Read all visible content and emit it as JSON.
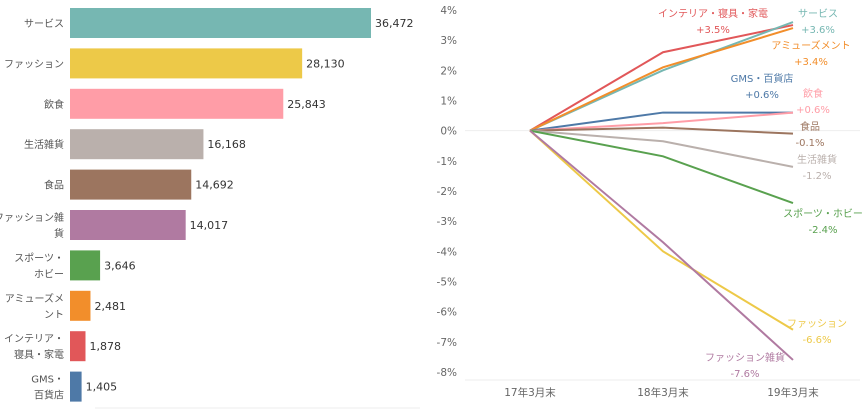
{
  "chart_data": [
    {
      "type": "bar",
      "orientation": "horizontal",
      "title": "",
      "categories": [
        "サービス",
        "ファッション",
        "飲食",
        "生活雑貨",
        "食品",
        "ファッション雑貨",
        "スポーツ・ホビー",
        "アミューズメント",
        "インテリア・寝具・家電",
        "GMS・百貨店"
      ],
      "category_labels": [
        [
          "サービス"
        ],
        [
          "ファッション"
        ],
        [
          "飲食"
        ],
        [
          "生活雑貨"
        ],
        [
          "食品"
        ],
        [
          "ファッション雑",
          "貨"
        ],
        [
          "スポーツ・",
          "ホビー"
        ],
        [
          "アミューズメ",
          "ント"
        ],
        [
          "インテリア・",
          "寝具・家電"
        ],
        [
          "GMS・",
          "百貨店"
        ]
      ],
      "values": [
        36472,
        28130,
        25843,
        16168,
        14692,
        14017,
        3646,
        2481,
        1878,
        1405
      ],
      "value_labels": [
        "36,472",
        "28,130",
        "25,843",
        "16,168",
        "14,692",
        "14,017",
        "3,646",
        "2,481",
        "1,878",
        "1,405"
      ],
      "colors": [
        "#76b7b2",
        "#edc948",
        "#ff9da7",
        "#bab0ac",
        "#9c755f",
        "#b07aa1",
        "#59a14f",
        "#f28e2b",
        "#e15759",
        "#4e79a7"
      ],
      "xlim": [
        0,
        36472
      ]
    },
    {
      "type": "line",
      "title": "",
      "x": [
        "17年3月末",
        "18年3月末",
        "19年3月末"
      ],
      "ylim": [
        -8,
        4
      ],
      "yticks": [
        "4%",
        "3%",
        "2%",
        "1%",
        "0%",
        "-1%",
        "-2%",
        "-3%",
        "-4%",
        "-5%",
        "-6%",
        "-7%",
        "-8%"
      ],
      "ytick_values": [
        4,
        3,
        2,
        1,
        0,
        -1,
        -2,
        -3,
        -4,
        -5,
        -6,
        -7,
        -8
      ],
      "series": [
        {
          "name": "インテリア・寝具・家電",
          "values": [
            0,
            2.6,
            3.5
          ],
          "end_label": "+3.5%",
          "color": "#e15759"
        },
        {
          "name": "サービス",
          "values": [
            0,
            2.0,
            3.6
          ],
          "end_label": "+3.6%",
          "color": "#76b7b2"
        },
        {
          "name": "アミューズメント",
          "values": [
            0,
            2.1,
            3.4
          ],
          "end_label": "+3.4%",
          "color": "#f28e2b"
        },
        {
          "name": "GMS・百貨店",
          "values": [
            0,
            0.6,
            0.6
          ],
          "end_label": "+0.6%",
          "color": "#4e79a7"
        },
        {
          "name": "飲食",
          "values": [
            0,
            0.25,
            0.6
          ],
          "end_label": "+0.6%",
          "color": "#ff9da7"
        },
        {
          "name": "食品",
          "values": [
            0,
            0.1,
            -0.1
          ],
          "end_label": "-0.1%",
          "color": "#9c755f"
        },
        {
          "name": "生活雑貨",
          "values": [
            0,
            -0.35,
            -1.2
          ],
          "end_label": "-1.2%",
          "color": "#bab0ac"
        },
        {
          "name": "スポーツ・ホビー",
          "values": [
            0,
            -0.85,
            -2.4
          ],
          "end_label": "-2.4%",
          "color": "#59a14f"
        },
        {
          "name": "ファッション",
          "values": [
            0,
            -4.0,
            -6.6
          ],
          "end_label": "-6.6%",
          "color": "#edc948"
        },
        {
          "name": "ファッション雑貨",
          "values": [
            0,
            -3.7,
            -7.6
          ],
          "end_label": "-7.6%",
          "color": "#b07aa1"
        }
      ]
    }
  ]
}
